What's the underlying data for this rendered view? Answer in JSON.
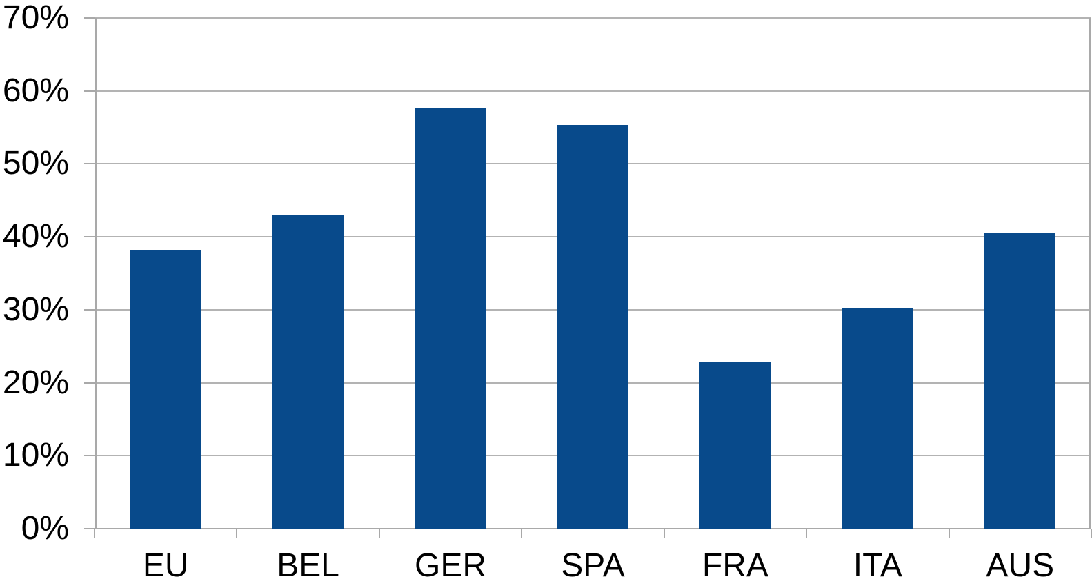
{
  "chart_data": {
    "type": "bar",
    "title": "",
    "xlabel": "",
    "ylabel": "",
    "categories": [
      "EU",
      "BEL",
      "GER",
      "SPA",
      "FRA",
      "ITA",
      "AUS"
    ],
    "values": [
      38.2,
      43.0,
      57.6,
      55.3,
      22.9,
      30.3,
      40.6
    ],
    "series_name": "",
    "ylim": [
      0,
      70
    ],
    "ytick_step": 10,
    "ytick_labels": [
      "0%",
      "10%",
      "20%",
      "30%",
      "40%",
      "50%",
      "60%",
      "70%"
    ],
    "grid": true,
    "legend_position": "none",
    "colors": {
      "bar": "#084A8B",
      "gridline": "#b3b3b3",
      "axis": "#a9a9a9",
      "text": "#000000",
      "background": "#ffffff"
    }
  }
}
